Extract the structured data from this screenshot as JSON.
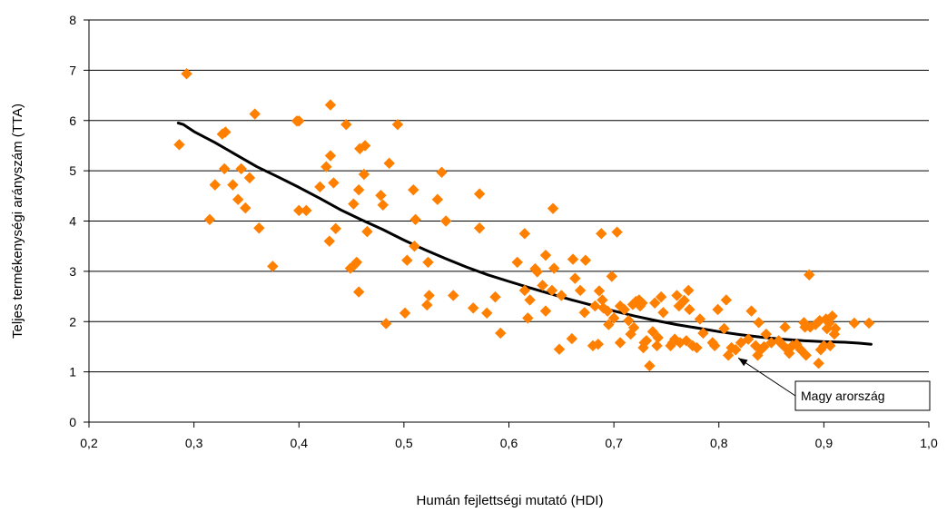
{
  "chart_data": {
    "type": "scatter",
    "xlabel": "Humán fejlettségi mutató (HDI)",
    "ylabel": "Teljes termékenységi arányszám (TTA)",
    "xlim": [
      0.2,
      1.0
    ],
    "ylim": [
      0,
      8
    ],
    "x_ticks": [
      "0,2",
      "0,3",
      "0,4",
      "0,5",
      "0,6",
      "0,7",
      "0,8",
      "0,9",
      "1,0"
    ],
    "y_ticks": [
      "0",
      "1",
      "2",
      "3",
      "4",
      "5",
      "6",
      "7",
      "8"
    ],
    "grid": "horizontal",
    "colors": {
      "points": "#ff7f00",
      "trend": "#000000"
    },
    "series": [
      {
        "kind": "points",
        "points": [
          [
            0.286,
            5.52
          ],
          [
            0.293,
            6.93
          ],
          [
            0.315,
            4.03
          ],
          [
            0.32,
            4.72
          ],
          [
            0.327,
            5.73
          ],
          [
            0.33,
            5.77
          ],
          [
            0.329,
            5.04
          ],
          [
            0.337,
            4.72
          ],
          [
            0.342,
            4.43
          ],
          [
            0.345,
            5.04
          ],
          [
            0.349,
            4.26
          ],
          [
            0.353,
            4.86
          ],
          [
            0.358,
            6.13
          ],
          [
            0.362,
            3.86
          ],
          [
            0.375,
            3.1
          ],
          [
            0.398,
            5.99
          ],
          [
            0.4,
            5.99
          ],
          [
            0.4,
            4.21
          ],
          [
            0.407,
            4.21
          ],
          [
            0.42,
            4.68
          ],
          [
            0.426,
            5.08
          ],
          [
            0.43,
            5.3
          ],
          [
            0.429,
            3.6
          ],
          [
            0.43,
            6.31
          ],
          [
            0.433,
            4.76
          ],
          [
            0.435,
            3.85
          ],
          [
            0.445,
            5.92
          ],
          [
            0.449,
            3.06
          ],
          [
            0.452,
            4.34
          ],
          [
            0.453,
            3.13
          ],
          [
            0.455,
            3.18
          ],
          [
            0.457,
            2.59
          ],
          [
            0.457,
            4.62
          ],
          [
            0.458,
            5.44
          ],
          [
            0.462,
            4.93
          ],
          [
            0.463,
            5.5
          ],
          [
            0.465,
            3.79
          ],
          [
            0.478,
            4.51
          ],
          [
            0.48,
            4.32
          ],
          [
            0.483,
            1.96
          ],
          [
            0.486,
            5.15
          ],
          [
            0.494,
            5.92
          ],
          [
            0.501,
            2.17
          ],
          [
            0.503,
            3.22
          ],
          [
            0.509,
            4.62
          ],
          [
            0.51,
            3.5
          ],
          [
            0.511,
            4.03
          ],
          [
            0.522,
            2.33
          ],
          [
            0.523,
            3.18
          ],
          [
            0.524,
            2.52
          ],
          [
            0.532,
            4.43
          ],
          [
            0.536,
            4.97
          ],
          [
            0.54,
            4.0
          ],
          [
            0.547,
            2.52
          ],
          [
            0.566,
            2.27
          ],
          [
            0.572,
            4.54
          ],
          [
            0.572,
            3.86
          ],
          [
            0.579,
            2.17
          ],
          [
            0.587,
            2.49
          ],
          [
            0.592,
            1.77
          ],
          [
            0.608,
            3.18
          ],
          [
            0.615,
            2.62
          ],
          [
            0.615,
            3.75
          ],
          [
            0.618,
            2.07
          ],
          [
            0.62,
            2.43
          ],
          [
            0.625,
            3.05
          ],
          [
            0.627,
            2.99
          ],
          [
            0.632,
            2.72
          ],
          [
            0.635,
            3.32
          ],
          [
            0.635,
            2.21
          ],
          [
            0.641,
            2.62
          ],
          [
            0.642,
            4.25
          ],
          [
            0.643,
            3.06
          ],
          [
            0.648,
            1.45
          ],
          [
            0.65,
            2.52
          ],
          [
            0.66,
            1.66
          ],
          [
            0.661,
            3.24
          ],
          [
            0.663,
            2.86
          ],
          [
            0.668,
            2.62
          ],
          [
            0.672,
            2.18
          ],
          [
            0.673,
            3.22
          ],
          [
            0.68,
            1.52
          ],
          [
            0.682,
            2.31
          ],
          [
            0.685,
            1.55
          ],
          [
            0.686,
            2.61
          ],
          [
            0.688,
            3.75
          ],
          [
            0.689,
            2.43
          ],
          [
            0.69,
            2.27
          ],
          [
            0.694,
            2.21
          ],
          [
            0.695,
            1.94
          ],
          [
            0.698,
            2.9
          ],
          [
            0.7,
            2.07
          ],
          [
            0.703,
            3.78
          ],
          [
            0.706,
            2.31
          ],
          [
            0.706,
            1.58
          ],
          [
            0.71,
            2.24
          ],
          [
            0.714,
            2.02
          ],
          [
            0.716,
            1.75
          ],
          [
            0.718,
            2.34
          ],
          [
            0.719,
            1.88
          ],
          [
            0.721,
            2.4
          ],
          [
            0.724,
            2.43
          ],
          [
            0.725,
            2.31
          ],
          [
            0.727,
            2.37
          ],
          [
            0.728,
            1.48
          ],
          [
            0.729,
            1.58
          ],
          [
            0.731,
            1.62
          ],
          [
            0.734,
            1.12
          ],
          [
            0.737,
            1.8
          ],
          [
            0.739,
            2.37
          ],
          [
            0.741,
            1.52
          ],
          [
            0.742,
            1.68
          ],
          [
            0.745,
            2.49
          ],
          [
            0.747,
            2.18
          ],
          [
            0.754,
            1.52
          ],
          [
            0.756,
            1.58
          ],
          [
            0.758,
            1.65
          ],
          [
            0.76,
            2.52
          ],
          [
            0.762,
            2.31
          ],
          [
            0.763,
            1.58
          ],
          [
            0.767,
            2.42
          ],
          [
            0.769,
            1.62
          ],
          [
            0.771,
            2.62
          ],
          [
            0.772,
            2.24
          ],
          [
            0.775,
            1.52
          ],
          [
            0.779,
            1.48
          ],
          [
            0.782,
            2.05
          ],
          [
            0.785,
            1.77
          ],
          [
            0.794,
            1.58
          ],
          [
            0.796,
            1.52
          ],
          [
            0.799,
            2.24
          ],
          [
            0.805,
            1.86
          ],
          [
            0.807,
            2.43
          ],
          [
            0.809,
            1.33
          ],
          [
            0.812,
            1.48
          ],
          [
            0.816,
            1.44
          ],
          [
            0.821,
            1.58
          ],
          [
            0.828,
            1.65
          ],
          [
            0.831,
            2.21
          ],
          [
            0.835,
            1.52
          ],
          [
            0.837,
            1.33
          ],
          [
            0.838,
            1.98
          ],
          [
            0.84,
            1.44
          ],
          [
            0.843,
            1.5
          ],
          [
            0.845,
            1.75
          ],
          [
            0.85,
            1.58
          ],
          [
            0.857,
            1.62
          ],
          [
            0.86,
            1.55
          ],
          [
            0.863,
            1.89
          ],
          [
            0.865,
            1.45
          ],
          [
            0.867,
            1.37
          ],
          [
            0.87,
            1.52
          ],
          [
            0.874,
            1.55
          ],
          [
            0.878,
            1.44
          ],
          [
            0.881,
            1.98
          ],
          [
            0.882,
            1.89
          ],
          [
            0.883,
            1.33
          ],
          [
            0.886,
            2.93
          ],
          [
            0.887,
            1.89
          ],
          [
            0.892,
            1.94
          ],
          [
            0.895,
            1.17
          ],
          [
            0.896,
            2.02
          ],
          [
            0.897,
            1.44
          ],
          [
            0.9,
            1.52
          ],
          [
            0.902,
            2.05
          ],
          [
            0.903,
            1.86
          ],
          [
            0.905,
            1.97
          ],
          [
            0.906,
            1.52
          ],
          [
            0.908,
            2.11
          ],
          [
            0.91,
            1.75
          ],
          [
            0.911,
            1.86
          ],
          [
            0.929,
            1.97
          ],
          [
            0.943,
            1.97
          ]
        ]
      },
      {
        "kind": "trend",
        "points": [
          [
            0.285,
            5.95
          ],
          [
            0.29,
            5.92
          ],
          [
            0.3,
            5.78
          ],
          [
            0.32,
            5.56
          ],
          [
            0.34,
            5.32
          ],
          [
            0.36,
            5.08
          ],
          [
            0.38,
            4.88
          ],
          [
            0.4,
            4.67
          ],
          [
            0.42,
            4.45
          ],
          [
            0.44,
            4.22
          ],
          [
            0.46,
            4.02
          ],
          [
            0.48,
            3.83
          ],
          [
            0.5,
            3.62
          ],
          [
            0.52,
            3.43
          ],
          [
            0.54,
            3.25
          ],
          [
            0.56,
            3.08
          ],
          [
            0.58,
            2.93
          ],
          [
            0.6,
            2.8
          ],
          [
            0.62,
            2.67
          ],
          [
            0.64,
            2.55
          ],
          [
            0.66,
            2.43
          ],
          [
            0.68,
            2.32
          ],
          [
            0.7,
            2.21
          ],
          [
            0.72,
            2.11
          ],
          [
            0.74,
            2.02
          ],
          [
            0.76,
            1.94
          ],
          [
            0.78,
            1.87
          ],
          [
            0.8,
            1.8
          ],
          [
            0.82,
            1.74
          ],
          [
            0.84,
            1.69
          ],
          [
            0.86,
            1.65
          ],
          [
            0.88,
            1.62
          ],
          [
            0.9,
            1.6
          ],
          [
            0.92,
            1.59
          ],
          [
            0.935,
            1.57
          ],
          [
            0.945,
            1.55
          ]
        ]
      }
    ],
    "annotations": [
      {
        "text": "Magy arország",
        "target": [
          0.815,
          1.33
        ]
      }
    ]
  }
}
